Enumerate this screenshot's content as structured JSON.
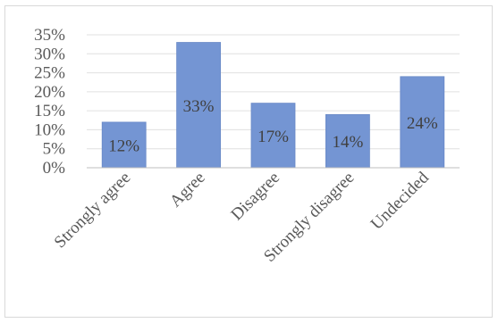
{
  "chart_data": {
    "type": "bar",
    "title": "",
    "xlabel": "",
    "ylabel": "",
    "categories": [
      "Strongly agree",
      "Agree",
      "Disagree",
      "Strongly disagree",
      "Undecided"
    ],
    "values": [
      12,
      33,
      17,
      14,
      24
    ],
    "data_labels": [
      "12%",
      "33%",
      "17%",
      "14%",
      "24%"
    ],
    "ylim": [
      0,
      35
    ],
    "yticks": [
      0,
      5,
      10,
      15,
      20,
      25,
      30,
      35
    ],
    "ytick_labels": [
      "0%",
      "5%",
      "10%",
      "15%",
      "20%",
      "25%",
      "30%",
      "35%"
    ],
    "grid": true,
    "legend": "none",
    "bar_color": "#7495d3",
    "bar_edge_color": "#6a8ac7",
    "grid_color": "#e0e0e0",
    "axis_color": "#bfbfbf"
  }
}
